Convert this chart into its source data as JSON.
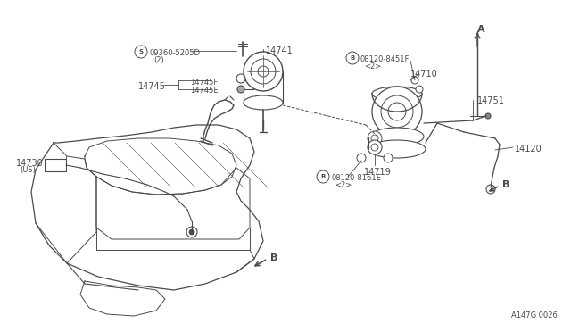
{
  "bg_color": "#ffffff",
  "line_color": "#4a4a4a",
  "fig_width": 6.4,
  "fig_height": 3.72,
  "dpi": 100,
  "watermark": "A147G 0026",
  "labels": {
    "S_label": "S09360-5205D",
    "S_sub": "(2)",
    "14741": "14741",
    "14745F": "14745F",
    "14745E": "14745E",
    "14745": "14745",
    "14730": "14730",
    "14730_us": "(US)",
    "B1_label": "B08120-8451F",
    "B1_sub": "<2>",
    "14710": "14710",
    "14751": "14751",
    "14120": "14120",
    "14719": "14719",
    "B2_label": "B08120-8161E",
    "B2_sub": "<2>",
    "A_label": "A",
    "B_bottom": "B",
    "B_right": "B"
  }
}
